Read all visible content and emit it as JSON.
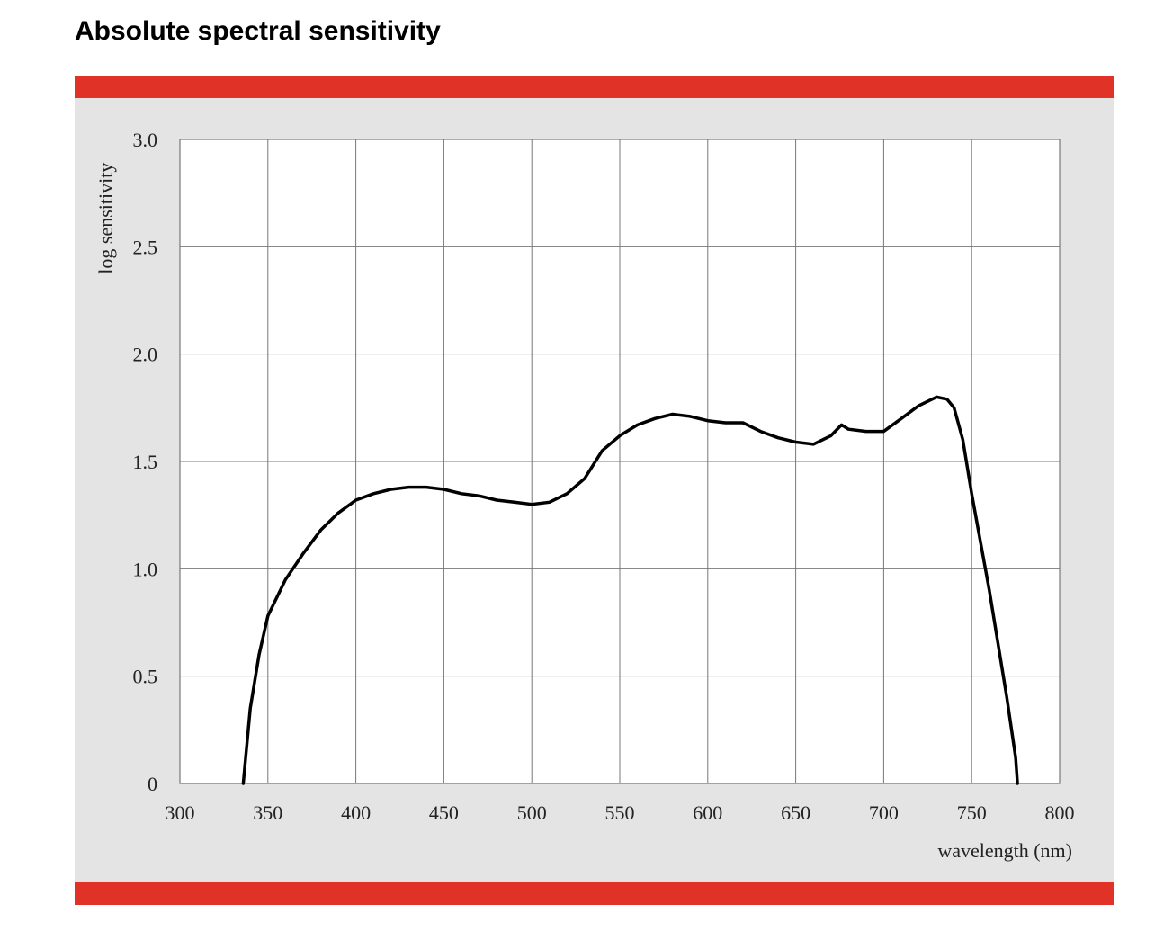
{
  "title": "Absolute spectral sensitivity",
  "colors": {
    "bar": "#e03226",
    "panel": "#e4e4e4",
    "plot": "#ffffff",
    "grid": "#777777",
    "line": "#000000"
  },
  "chart_data": {
    "type": "line",
    "xlabel": "wavelength (nm)",
    "ylabel": "log sensitivity",
    "xlim": [
      300,
      800
    ],
    "ylim": [
      0,
      3.0
    ],
    "x_ticks": [
      300,
      350,
      400,
      450,
      500,
      550,
      600,
      650,
      700,
      750,
      800
    ],
    "x_tick_labels": [
      "300",
      "350",
      "400",
      "450",
      "500",
      "550",
      "600",
      "650",
      "700",
      "750",
      "800"
    ],
    "y_ticks": [
      0,
      0.5,
      1.0,
      1.5,
      2.0,
      2.5,
      3.0
    ],
    "y_tick_labels": [
      "0",
      "0.5",
      "1.0",
      "1.5",
      "2.0",
      "2.5",
      "3.0"
    ],
    "grid": true,
    "series": [
      {
        "x": [
          336,
          340,
          345,
          350,
          360,
          370,
          380,
          390,
          400,
          410,
          420,
          430,
          440,
          450,
          460,
          470,
          480,
          490,
          500,
          510,
          520,
          530,
          540,
          550,
          560,
          570,
          580,
          590,
          600,
          610,
          620,
          630,
          640,
          650,
          660,
          670,
          676,
          678,
          680,
          690,
          700,
          710,
          720,
          730,
          736,
          740,
          745,
          750,
          760,
          770,
          775,
          776
        ],
        "y": [
          0.0,
          0.35,
          0.6,
          0.78,
          0.95,
          1.07,
          1.18,
          1.26,
          1.32,
          1.35,
          1.37,
          1.38,
          1.38,
          1.37,
          1.35,
          1.34,
          1.32,
          1.31,
          1.3,
          1.31,
          1.35,
          1.42,
          1.55,
          1.62,
          1.67,
          1.7,
          1.72,
          1.71,
          1.69,
          1.68,
          1.68,
          1.64,
          1.61,
          1.59,
          1.58,
          1.62,
          1.67,
          1.66,
          1.65,
          1.64,
          1.64,
          1.7,
          1.76,
          1.8,
          1.79,
          1.75,
          1.6,
          1.35,
          0.9,
          0.4,
          0.12,
          0.0
        ]
      }
    ]
  }
}
